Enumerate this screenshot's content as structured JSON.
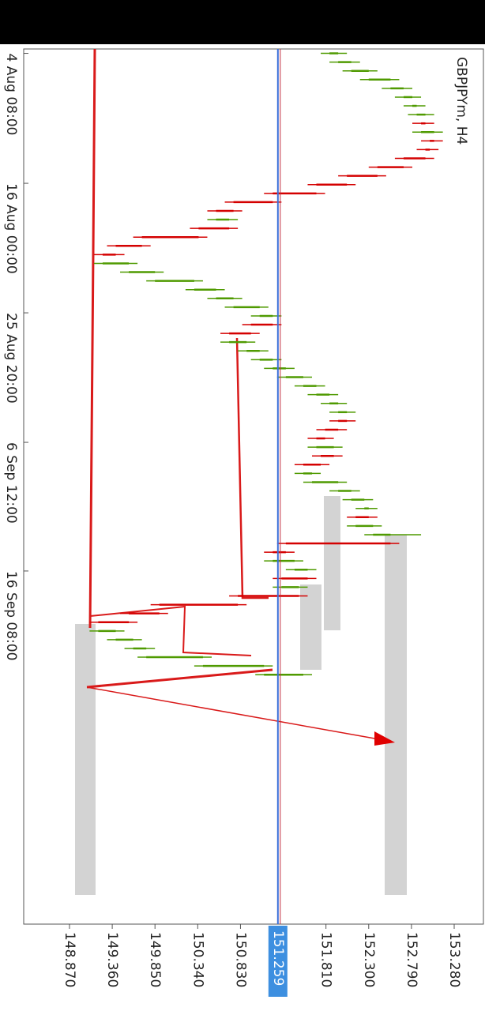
{
  "chart_data": {
    "type": "ohlc",
    "title": "GBPJPYm, H4",
    "x": [
      1,
      3,
      5,
      7,
      9,
      11,
      13,
      15,
      17,
      19,
      21,
      23,
      25,
      27,
      29,
      31,
      33,
      35,
      37,
      39,
      41,
      43,
      45,
      47,
      49,
      51,
      53,
      55,
      57,
      59,
      61,
      63,
      65,
      67,
      69,
      71,
      73,
      75,
      77,
      79,
      81,
      83,
      85,
      87,
      89,
      91,
      93,
      95,
      97,
      99,
      101,
      103,
      105,
      107,
      109,
      111,
      113,
      115,
      117,
      119,
      121,
      123,
      125,
      127,
      129,
      131,
      133,
      135,
      137,
      139,
      141,
      143
    ],
    "open": [
      151.85,
      151.95,
      152.1,
      152.3,
      152.55,
      152.7,
      152.8,
      152.85,
      152.95,
      152.9,
      153.05,
      153.0,
      152.95,
      152.7,
      152.4,
      152.05,
      151.7,
      151.2,
      150.75,
      150.55,
      150.7,
      150.35,
      149.7,
      149.4,
      149.25,
      149.55,
      149.85,
      150.3,
      150.55,
      150.75,
      151.05,
      151.2,
      150.95,
      150.7,
      150.9,
      151.05,
      151.2,
      151.35,
      151.55,
      151.7,
      151.85,
      151.95,
      152.05,
      151.95,
      151.8,
      151.7,
      151.9,
      151.75,
      151.55,
      151.65,
      151.95,
      152.1,
      152.25,
      152.3,
      152.15,
      152.35,
      152.55,
      151.35,
      151.2,
      151.45,
      151.6,
      151.3,
      151.5,
      150.8,
      149.9,
      149.55,
      149.2,
      149.4,
      149.6,
      149.75,
      150.4,
      151.1
    ],
    "high": [
      152.05,
      152.2,
      152.4,
      152.65,
      152.8,
      152.9,
      152.95,
      153.05,
      153.05,
      153.15,
      153.15,
      153.1,
      153.05,
      152.8,
      152.5,
      152.15,
      151.8,
      151.3,
      150.85,
      150.8,
      150.8,
      150.45,
      149.8,
      149.5,
      149.65,
      149.95,
      150.4,
      150.65,
      150.85,
      151.15,
      151.3,
      151.3,
      151.05,
      151.0,
      151.15,
      151.3,
      151.45,
      151.65,
      151.8,
      151.95,
      152.05,
      152.15,
      152.15,
      152.05,
      151.9,
      152.0,
      152.0,
      151.85,
      151.75,
      152.05,
      152.2,
      152.35,
      152.4,
      152.4,
      152.45,
      152.9,
      152.65,
      151.45,
      151.55,
      151.7,
      151.7,
      151.6,
      151.6,
      150.9,
      150.0,
      149.65,
      149.5,
      149.7,
      149.85,
      150.5,
      151.2,
      151.65
    ],
    "low": [
      151.75,
      151.85,
      152.0,
      152.2,
      152.45,
      152.6,
      152.7,
      152.75,
      152.8,
      152.8,
      152.9,
      152.85,
      152.6,
      152.3,
      151.95,
      151.6,
      151.1,
      150.65,
      150.45,
      150.45,
      150.25,
      149.6,
      149.3,
      149.15,
      149.15,
      149.45,
      149.75,
      150.2,
      150.45,
      150.65,
      150.95,
      150.85,
      150.6,
      150.6,
      150.8,
      150.95,
      151.1,
      151.25,
      151.45,
      151.6,
      151.75,
      151.85,
      151.85,
      151.7,
      151.6,
      151.6,
      151.65,
      151.45,
      151.45,
      151.55,
      151.85,
      152.0,
      152.15,
      152.05,
      152.05,
      152.25,
      151.25,
      151.1,
      151.1,
      151.35,
      151.2,
      151.2,
      150.7,
      149.8,
      149.45,
      149.1,
      149.1,
      149.3,
      149.5,
      149.65,
      150.3,
      151.0
    ],
    "close": [
      151.95,
      152.1,
      152.3,
      152.55,
      152.7,
      152.8,
      152.85,
      152.95,
      152.9,
      153.05,
      153.0,
      152.95,
      152.7,
      152.4,
      152.05,
      151.7,
      151.2,
      150.75,
      150.55,
      150.7,
      150.35,
      149.7,
      149.4,
      149.25,
      149.55,
      149.85,
      150.3,
      150.55,
      150.75,
      151.05,
      151.2,
      150.95,
      150.7,
      150.9,
      151.05,
      151.2,
      151.35,
      151.55,
      151.7,
      151.85,
      151.95,
      152.05,
      151.95,
      151.8,
      151.7,
      151.9,
      151.75,
      151.55,
      151.65,
      151.95,
      152.1,
      152.25,
      152.3,
      152.15,
      152.35,
      152.55,
      151.35,
      151.2,
      151.45,
      151.6,
      151.3,
      151.5,
      150.8,
      149.9,
      149.55,
      149.2,
      149.4,
      149.6,
      149.75,
      150.4,
      151.1,
      151.55
    ],
    "up_color": "#4f9a00",
    "down_color": "#d40000",
    "xlim": [
      0,
      200
    ],
    "xticks": [
      {
        "value": 1,
        "label": "4 Aug 08:00"
      },
      {
        "value": 30.7,
        "label": "16 Aug 00:00"
      },
      {
        "value": 60.3,
        "label": "25 Aug 20:00"
      },
      {
        "value": 89.9,
        "label": "6 Sep 12:00"
      },
      {
        "value": 119.3,
        "label": "16 Sep 08:00"
      }
    ],
    "ylim": [
      148.345,
      153.615
    ],
    "yticks": [
      {
        "value": 148.87,
        "label": "148.870"
      },
      {
        "value": 149.36,
        "label": "149.360"
      },
      {
        "value": 149.85,
        "label": "149.850"
      },
      {
        "value": 150.34,
        "label": "150.340"
      },
      {
        "value": 150.83,
        "label": "150.830"
      },
      {
        "value": 151.81,
        "label": "151.810"
      },
      {
        "value": 152.3,
        "label": "152.300"
      },
      {
        "value": 152.79,
        "label": "152.790"
      },
      {
        "value": 153.28,
        "label": "153.280"
      }
    ],
    "current_price": 151.259,
    "current_price_color": "#3a6fd8"
  }
}
